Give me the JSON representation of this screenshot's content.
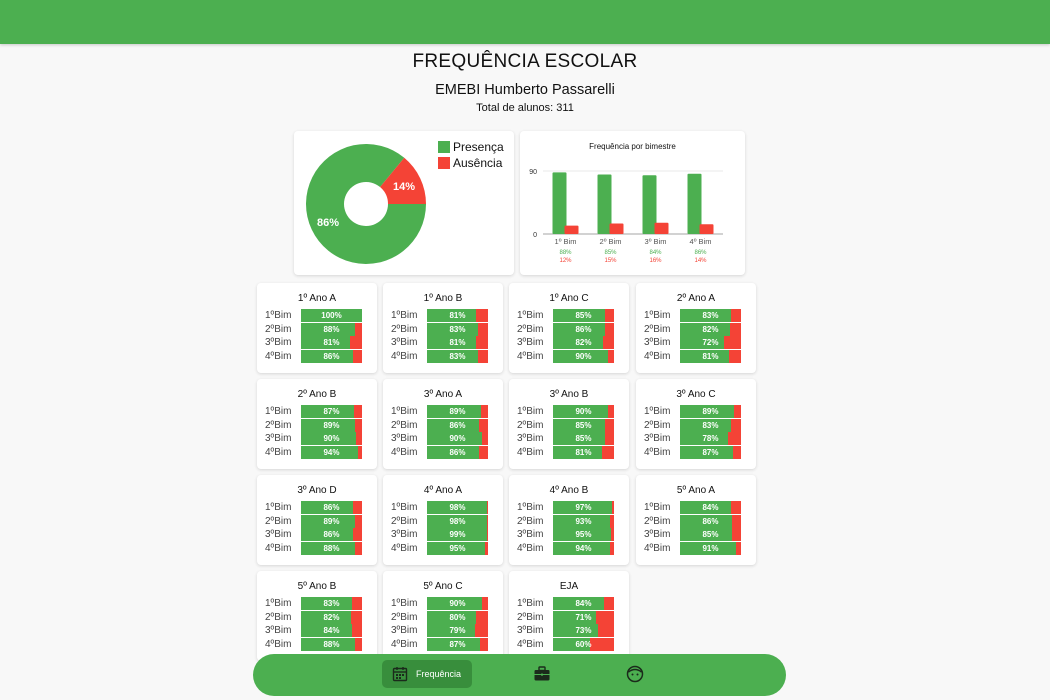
{
  "page": {
    "title": "FREQUÊNCIA ESCOLAR",
    "school_name": "EMEBI Humberto Passarelli",
    "total_students": "Total de alunos: 311"
  },
  "colors": {
    "presence": "#4caf50",
    "absence": "#f44336",
    "topbar": "#4caf50"
  },
  "chart_data": [
    {
      "type": "pie",
      "title": "",
      "labels": [
        "Presença",
        "Ausência"
      ],
      "values": [
        86,
        14
      ],
      "data_labels": [
        "86%",
        "14%"
      ],
      "legend_position": "top-right"
    },
    {
      "type": "bar",
      "title": "Frequência por bimestre",
      "categories": [
        "1º Bim",
        "2º Bim",
        "3º Bim",
        "4º Bim"
      ],
      "series": [
        {
          "name": "Presença",
          "values": [
            88,
            85,
            84,
            86
          ],
          "labels": [
            "88%",
            "85%",
            "84%",
            "86%"
          ]
        },
        {
          "name": "Ausência",
          "values": [
            12,
            15,
            16,
            14
          ],
          "labels": [
            "12%",
            "15%",
            "16%",
            "14%"
          ]
        }
      ],
      "y_ticks": [
        "90",
        "0"
      ],
      "ylim": [
        0,
        100
      ]
    }
  ],
  "bim_labels": [
    "1ºBim",
    "2ºBim",
    "3ºBim",
    "4ºBim"
  ],
  "classes": [
    {
      "name": "1º Ano A",
      "values": [
        100,
        88,
        81,
        86
      ],
      "labels": [
        "100%",
        "88%",
        "81%",
        "86%"
      ]
    },
    {
      "name": "1º Ano B",
      "values": [
        81,
        83,
        81,
        83
      ],
      "labels": [
        "81%",
        "83%",
        "81%",
        "83%"
      ]
    },
    {
      "name": "1º Ano C",
      "values": [
        85,
        86,
        82,
        90
      ],
      "labels": [
        "85%",
        "86%",
        "82%",
        "90%"
      ]
    },
    {
      "name": "2º Ano A",
      "values": [
        83,
        82,
        72,
        81
      ],
      "labels": [
        "83%",
        "82%",
        "72%",
        "81%"
      ]
    },
    {
      "name": "2º Ano B",
      "values": [
        87,
        89,
        90,
        94
      ],
      "labels": [
        "87%",
        "89%",
        "90%",
        "94%"
      ]
    },
    {
      "name": "3º Ano A",
      "values": [
        89,
        86,
        90,
        86
      ],
      "labels": [
        "89%",
        "86%",
        "90%",
        "86%"
      ]
    },
    {
      "name": "3º Ano B",
      "values": [
        90,
        85,
        85,
        81
      ],
      "labels": [
        "90%",
        "85%",
        "85%",
        "81%"
      ]
    },
    {
      "name": "3º Ano C",
      "values": [
        89,
        83,
        78,
        87
      ],
      "labels": [
        "89%",
        "83%",
        "78%",
        "87%"
      ]
    },
    {
      "name": "3º Ano D",
      "values": [
        86,
        89,
        86,
        88
      ],
      "labels": [
        "86%",
        "89%",
        "86%",
        "88%"
      ]
    },
    {
      "name": "4º Ano A",
      "values": [
        98,
        98,
        99,
        95
      ],
      "labels": [
        "98%",
        "98%",
        "99%",
        "95%"
      ]
    },
    {
      "name": "4º Ano B",
      "values": [
        97,
        93,
        95,
        94
      ],
      "labels": [
        "97%",
        "93%",
        "95%",
        "94%"
      ]
    },
    {
      "name": "5º Ano A",
      "values": [
        84,
        86,
        85,
        91
      ],
      "labels": [
        "84%",
        "86%",
        "85%",
        "91%"
      ]
    },
    {
      "name": "5º Ano B",
      "values": [
        83,
        82,
        84,
        88
      ],
      "labels": [
        "83%",
        "82%",
        "84%",
        "88%"
      ]
    },
    {
      "name": "5º Ano C",
      "values": [
        90,
        80,
        79,
        87
      ],
      "labels": [
        "90%",
        "80%",
        "79%",
        "87%"
      ]
    },
    {
      "name": "EJA",
      "values": [
        84,
        71,
        73,
        60
      ],
      "labels": [
        "84%",
        "71%",
        "73%",
        "60%"
      ]
    }
  ],
  "nav": {
    "items": [
      {
        "icon": "calendar-icon",
        "label": "Frequência",
        "active": true
      },
      {
        "icon": "briefcase-icon",
        "label": "",
        "active": false
      },
      {
        "icon": "face-icon",
        "label": "",
        "active": false
      }
    ]
  }
}
